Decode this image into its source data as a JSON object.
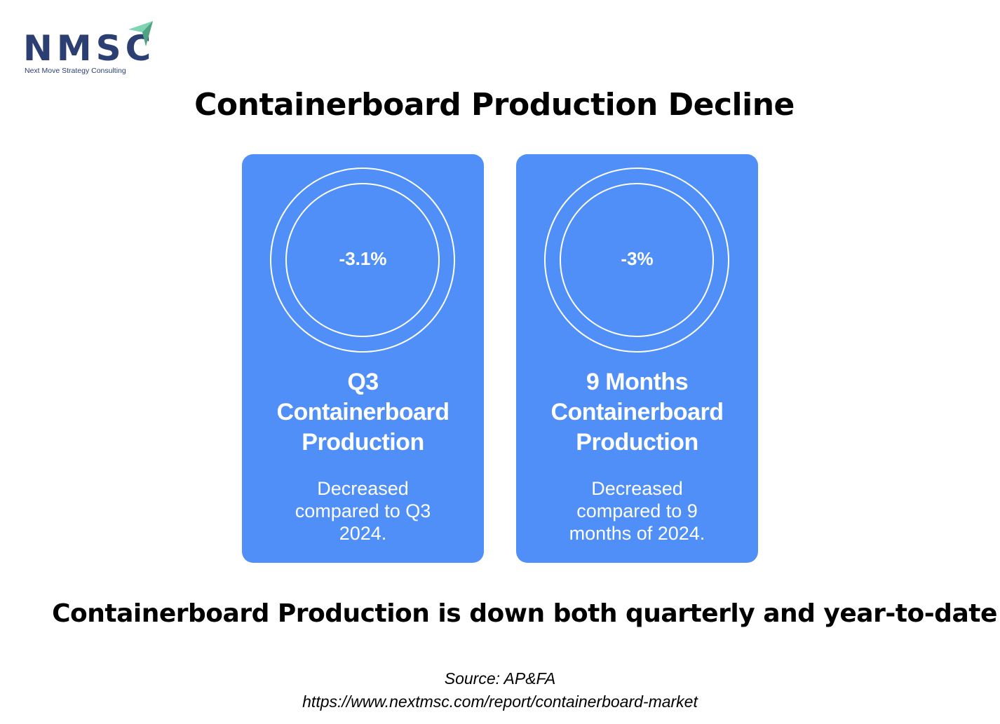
{
  "logo": {
    "name": "NMSC",
    "tagline": "Next Move Strategy Consulting"
  },
  "title": "Containerboard Production Decline",
  "colors": {
    "card": "#4f8ff7",
    "logo": "#2b3f73",
    "logo_arrow": "#5fbf9a"
  },
  "cards": [
    {
      "value": "-3.1%",
      "heading": "Q3 Containerboard Production",
      "description": "Decreased compared to Q3 2024."
    },
    {
      "value": "-3%",
      "heading": "9 Months Containerboard Production",
      "description": "Decreased compared to 9 months of 2024."
    }
  ],
  "summary": "Containerboard Production is down both quarterly and year-to-date",
  "source": {
    "label": "Source: AP&FA",
    "url": "https://www.nextmsc.com/report/containerboard-market"
  }
}
